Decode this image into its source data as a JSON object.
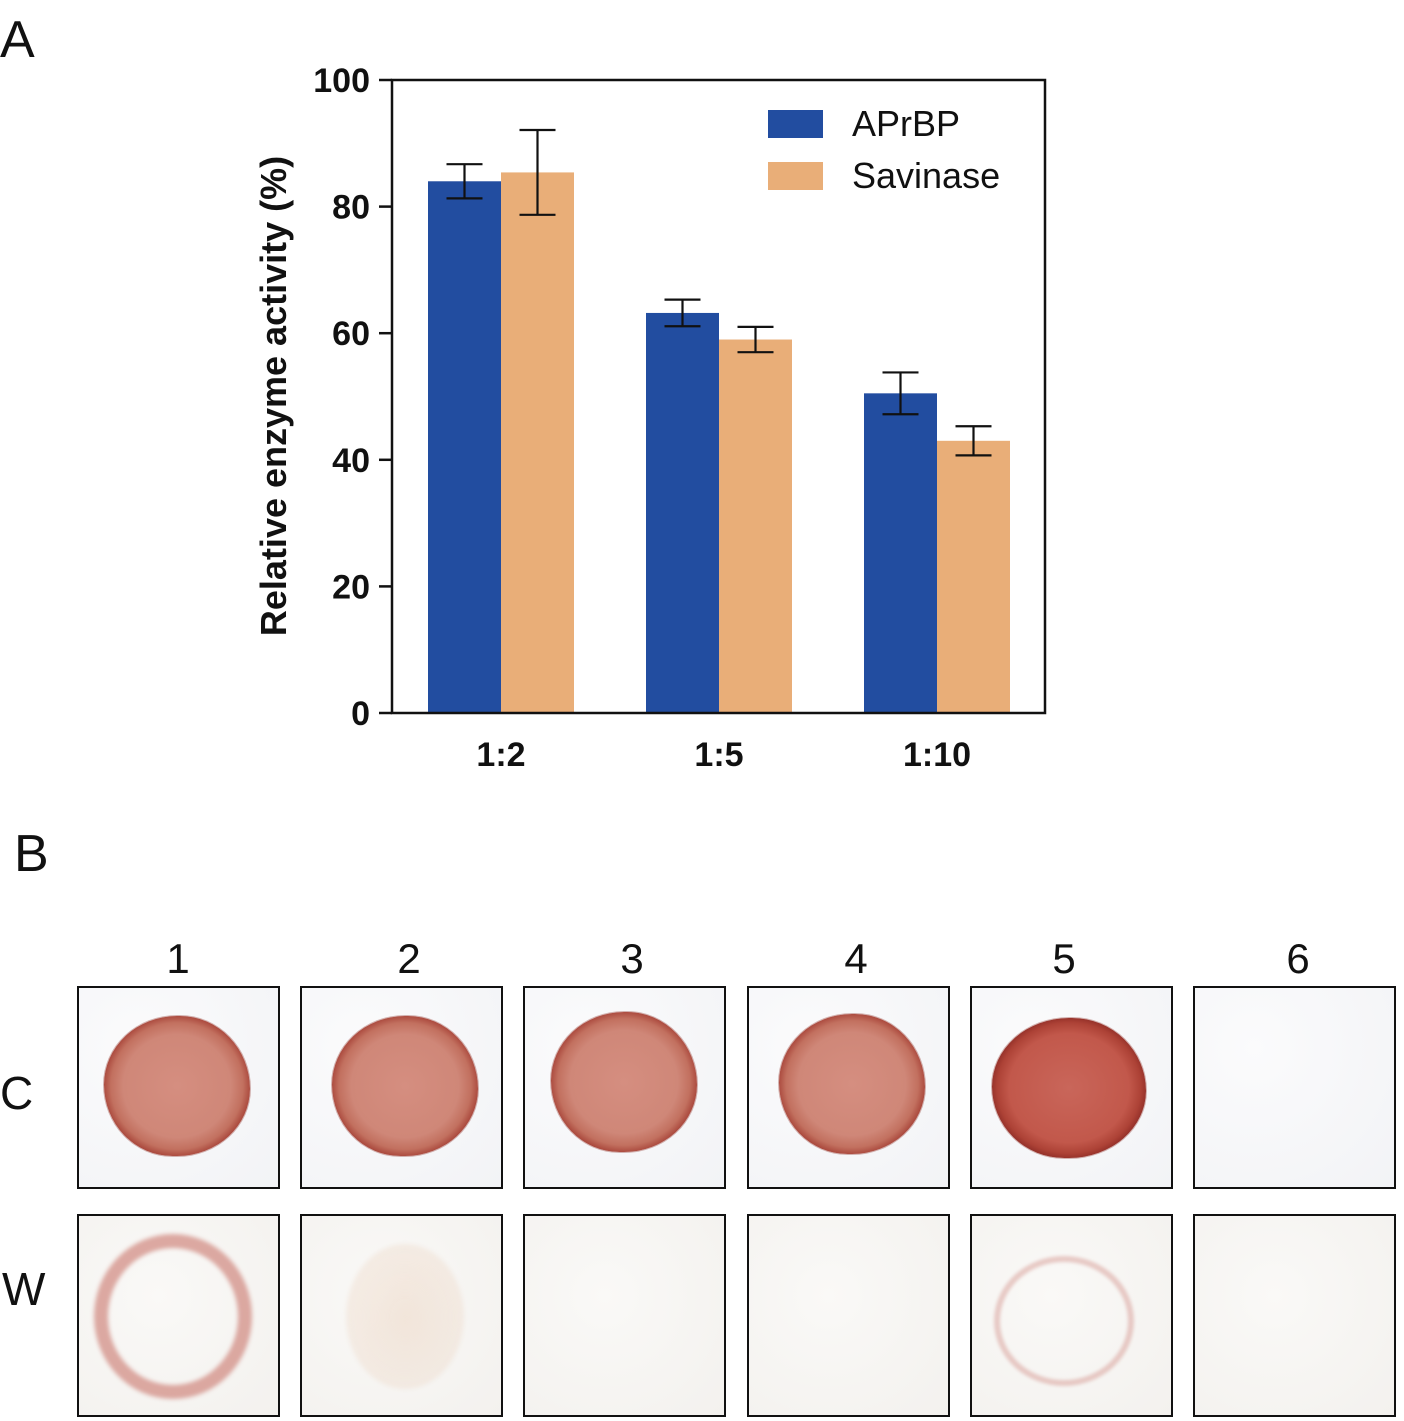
{
  "panels": {
    "a_label": "A",
    "b_label": "B"
  },
  "chart_data": {
    "type": "bar",
    "title": "",
    "xlabel": "",
    "ylabel": "Relative enzyme activity (%)",
    "ylim": [
      0,
      100
    ],
    "yticks": [
      "0",
      "20",
      "40",
      "60",
      "80",
      "100"
    ],
    "categories": [
      "1:2",
      "1:5",
      "1:10"
    ],
    "grid": false,
    "legend_position": "top-right",
    "series": [
      {
        "name": "APrBP",
        "color": "#224da0",
        "values": [
          84,
          63.2,
          50.5
        ],
        "errors": [
          2.7,
          2.1,
          3.3
        ]
      },
      {
        "name": "Savinase",
        "color": "#e9ae78",
        "values": [
          85.4,
          59,
          43
        ],
        "errors": [
          6.7,
          2,
          2.3
        ]
      }
    ]
  },
  "stain_panel": {
    "columns": [
      "1",
      "2",
      "3",
      "4",
      "5",
      "6"
    ],
    "rows": [
      {
        "label": "C",
        "cells": [
          "dark-red-disc",
          "dark-red-disc",
          "dark-red-disc",
          "dark-red-disc",
          "intense-red-disc",
          "blank"
        ]
      },
      {
        "label": "W",
        "cells": [
          "red-ring",
          "faint-beige-blob",
          "blank",
          "blank",
          "faint-pink-ring",
          "blank"
        ]
      }
    ]
  }
}
